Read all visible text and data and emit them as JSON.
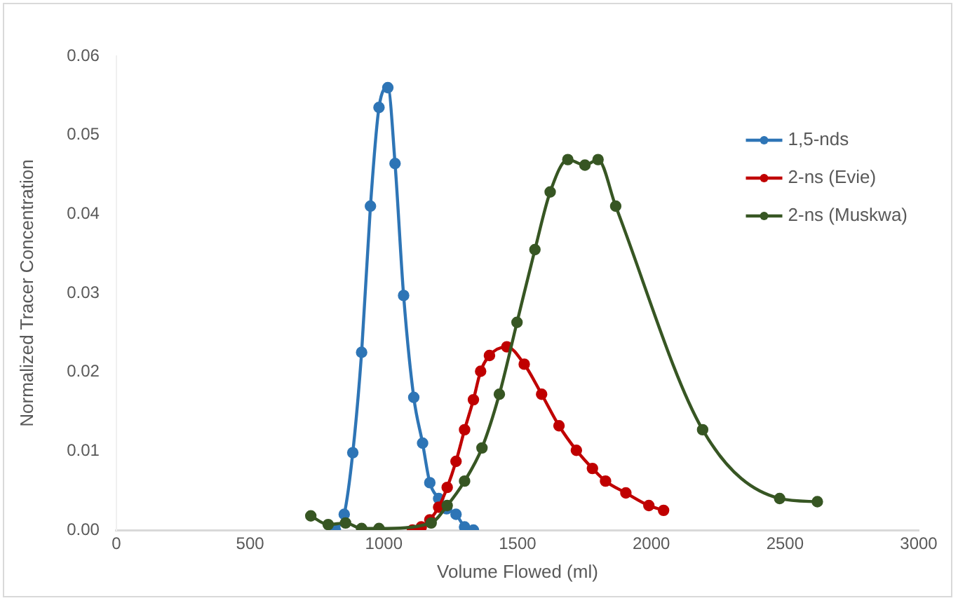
{
  "chart_data": {
    "type": "line",
    "xlabel": "Volume Flowed (ml)",
    "ylabel": "Normalized Tracer Concentration",
    "xlim": [
      0,
      3000
    ],
    "xticks": [
      0,
      500,
      1000,
      1500,
      2000,
      2500,
      3000
    ],
    "ylim": [
      0,
      0.06
    ],
    "yticks": [
      {
        "value": 0,
        "label": "0.00"
      },
      {
        "value": 0.01,
        "label": "0.01"
      },
      {
        "value": 0.02,
        "label": "0.02"
      },
      {
        "value": 0.03,
        "label": "0.03"
      },
      {
        "value": 0.04,
        "label": "0.04"
      },
      {
        "value": 0.05,
        "label": "0.05"
      },
      {
        "value": 0.06,
        "label": "0.06"
      }
    ],
    "grid": false,
    "legend": "right",
    "marker": "circle",
    "line_style": "solid",
    "series": [
      {
        "name": "1,5-nds",
        "color": "#2e75b6",
        "x": [
          819,
          852,
          884,
          917,
          950,
          982,
          1015,
          1042,
          1074,
          1112,
          1145,
          1172,
          1205,
          1235,
          1270,
          1302,
          1335
        ],
        "values": [
          0,
          0.002,
          0.0098,
          0.0225,
          0.041,
          0.0535,
          0.056,
          0.0464,
          0.0297,
          0.0168,
          0.011,
          0.006,
          0.004,
          0.0027,
          0.002,
          0.0004,
          0
        ]
      },
      {
        "name": "2-ns (Evie)",
        "color": "#c00000",
        "x": [
          1107,
          1140,
          1172,
          1205,
          1237,
          1270,
          1302,
          1335,
          1362,
          1395,
          1460,
          1525,
          1590,
          1655,
          1720,
          1780,
          1829,
          1905,
          1991,
          2046
        ],
        "values": [
          0,
          0.0004,
          0.0013,
          0.0029,
          0.0054,
          0.0087,
          0.0127,
          0.0165,
          0.0201,
          0.0221,
          0.0232,
          0.021,
          0.0172,
          0.0132,
          0.0101,
          0.0078,
          0.0062,
          0.0047,
          0.0031,
          0.0025
        ]
      },
      {
        "name": "2-ns (Muskwa)",
        "color": "#375623",
        "x": [
          727,
          792,
          857,
          917,
          982,
          1177,
          1237,
          1302,
          1367,
          1432,
          1498,
          1565,
          1622,
          1688,
          1752,
          1801,
          1867,
          2192,
          2480,
          2621
        ],
        "values": [
          0.0018,
          0.0007,
          0.0009,
          0.0002,
          0.0002,
          0.0009,
          0.0031,
          0.0062,
          0.0104,
          0.0172,
          0.0263,
          0.0355,
          0.0428,
          0.0469,
          0.0462,
          0.0469,
          0.041,
          0.0127,
          0.004,
          0.0036
        ]
      }
    ]
  }
}
